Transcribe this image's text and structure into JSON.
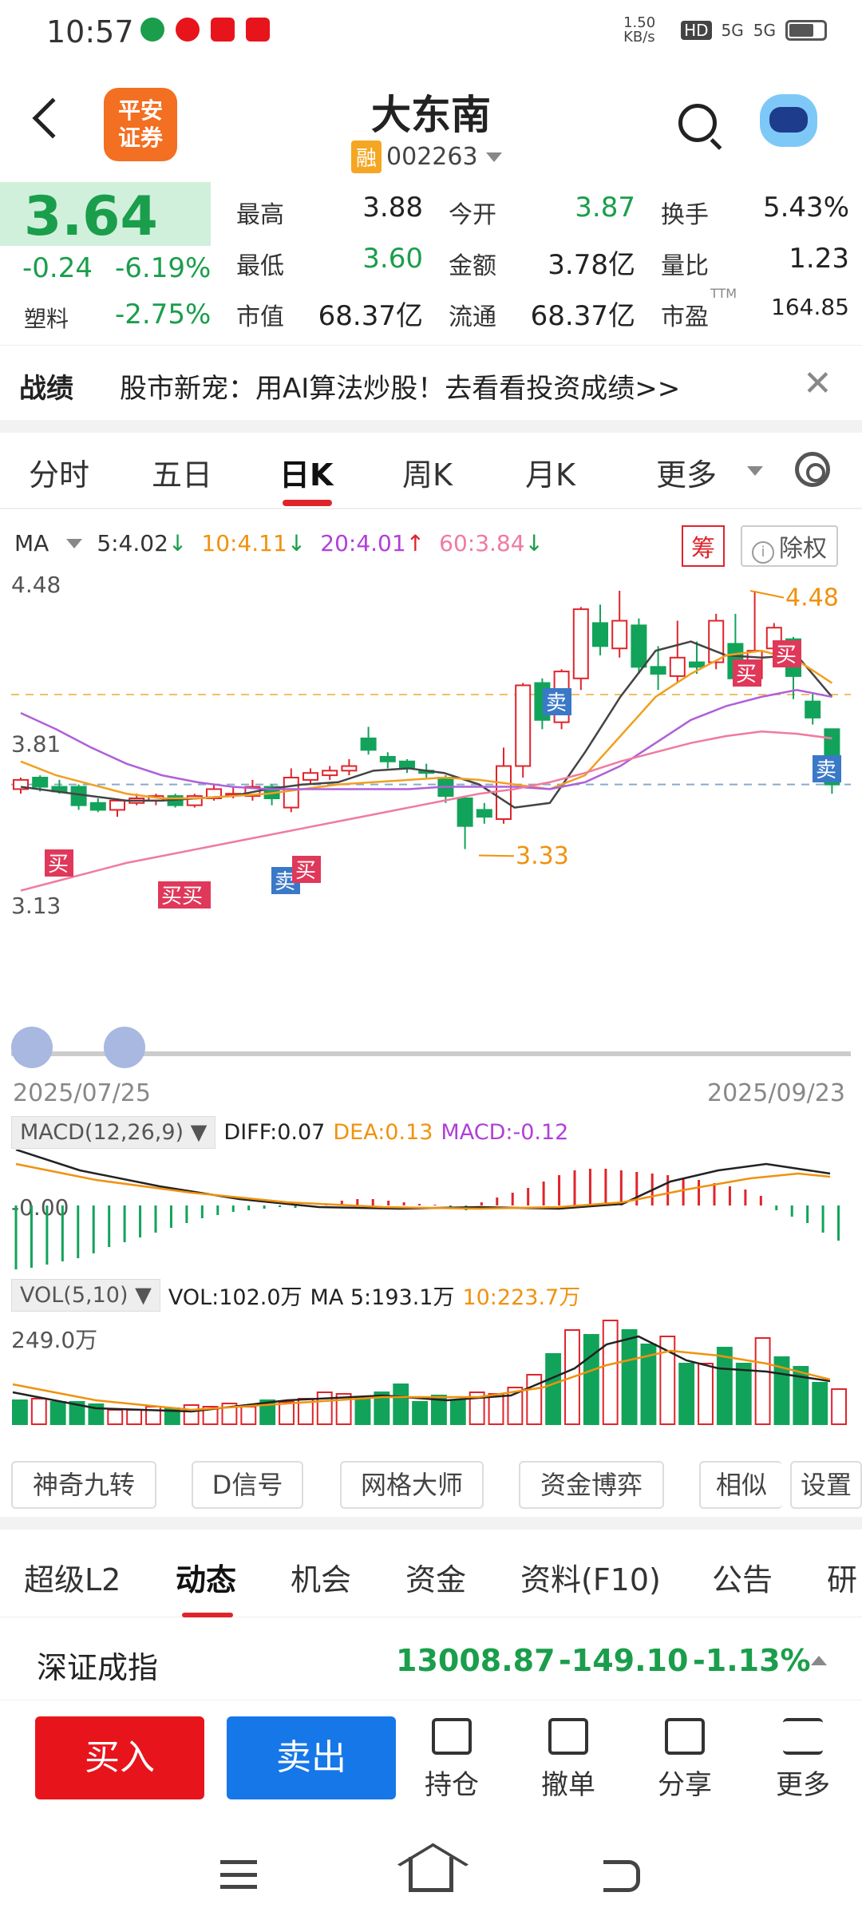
{
  "status_bar": {
    "time": "10:57",
    "speed": "1.50 KB/s",
    "net1": "5G",
    "net2": "5G",
    "hd": "HD"
  },
  "header": {
    "logo_line1": "平安",
    "logo_line2": "证券",
    "stock_name": "大东南",
    "rong_badge": "融",
    "stock_code": "002263"
  },
  "quote": {
    "price": "3.64",
    "change": "-0.24",
    "change_pct": "-6.19%",
    "sector_label": "塑料",
    "sector_pct": "-2.75%",
    "rows": [
      [
        {
          "label": "最高",
          "value": "3.88",
          "color": "#222"
        },
        {
          "label": "今开",
          "value": "3.87",
          "color": "#1a9e4b"
        },
        {
          "label": "换手",
          "value": "5.43%",
          "color": "#222"
        }
      ],
      [
        {
          "label": "最低",
          "value": "3.60",
          "color": "#1a9e4b"
        },
        {
          "label": "金额",
          "value": "3.78亿",
          "color": "#222"
        },
        {
          "label": "量比",
          "value": "1.23",
          "color": "#222"
        }
      ],
      [
        {
          "label": "市值",
          "value": "68.37亿",
          "color": "#222"
        },
        {
          "label": "流通",
          "value": "68.37亿",
          "color": "#222"
        },
        {
          "label": "市盈",
          "value": "164.85",
          "color": "#222"
        }
      ]
    ],
    "ttm": "TTM"
  },
  "promo": {
    "tag": "战绩",
    "text": "股市新宠：用AI算法炒股！去看看投资成绩>>"
  },
  "kline_tabs": [
    "分时",
    "五日",
    "日K",
    "周K",
    "月K",
    "更多"
  ],
  "ma_row": {
    "label": "MA",
    "ma5": "5:4.02",
    "ma10": "10:4.11",
    "ma20": "20:4.01",
    "ma60": "60:3.84",
    "chou": "筹",
    "chuquan": "除权"
  },
  "chart_data": {
    "type": "candlestick",
    "ytick_top": "4.48",
    "ytick_mid": "3.81",
    "ytick_bottom": "3.13",
    "high_label": "4.48",
    "low_label": "3.33",
    "date_start": "2025/07/25",
    "date_end": "2025/09/23",
    "signal_buy": "买",
    "signal_sell": "卖",
    "signal_buybuy": "买买"
  },
  "macd": {
    "label": "MACD(12,26,9)",
    "diff": "DIFF:0.07",
    "dea": "DEA:0.13",
    "macd": "MACD:-0.12",
    "zero": "-0.00"
  },
  "vol": {
    "label": "VOL(5,10)",
    "vol": "VOL:102.0万",
    "ma5": "MA 5:193.1万",
    "ma10": "10:223.7万",
    "ytick": "249.0万"
  },
  "tools": [
    "神奇九转",
    "D信号",
    "网格大师",
    "资金博弈",
    "相似",
    "设置"
  ],
  "sub_tabs": [
    "超级L2",
    "动态",
    "机会",
    "资金",
    "资料(F10)",
    "公告",
    "研"
  ],
  "index_row": {
    "name": "深证成指",
    "value": "13008.87",
    "change": "-149.10",
    "pct": "-1.13%"
  },
  "actions": {
    "buy": "买入",
    "sell": "卖出",
    "hold": "持仓",
    "cancel": "撤单",
    "share": "分享",
    "more": "更多"
  }
}
